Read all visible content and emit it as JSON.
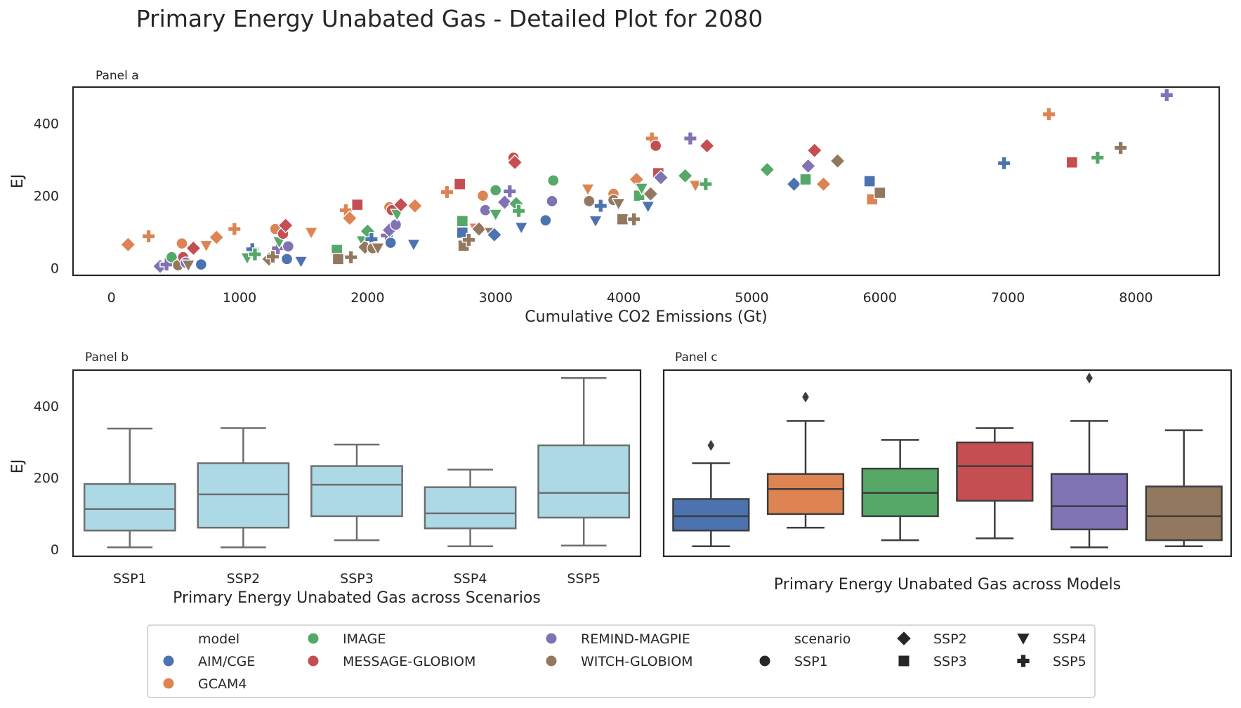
{
  "title": "Primary Energy Unabated Gas - Detailed Plot for 2080",
  "model_colors": {
    "AIM/CGE": "#4c72b0",
    "GCAM4": "#dd8452",
    "IMAGE": "#55a868",
    "MESSAGE-GLOBIOM": "#c44e52",
    "REMIND-MAGPIE": "#8172b3",
    "WITCH-GLOBIOM": "#937860"
  },
  "box_fill_scenarios": "#add8e6",
  "legend": {
    "model_title": "model",
    "scenario_title": "scenario",
    "models": [
      "AIM/CGE",
      "GCAM4",
      "IMAGE",
      "MESSAGE-GLOBIOM",
      "REMIND-MAGPIE",
      "WITCH-GLOBIOM"
    ],
    "scenarios": [
      "SSP1",
      "SSP2",
      "SSP3",
      "SSP4",
      "SSP5"
    ],
    "scenario_markers": {
      "SSP1": "circle",
      "SSP2": "diamond",
      "SSP3": "square",
      "SSP4": "triangle-down",
      "SSP5": "plus"
    }
  },
  "chart_data": [
    {
      "panel": "Panel a",
      "type": "scatter",
      "xlabel": "Cumulative CO2 Emissions (Gt)",
      "ylabel": "EJ",
      "xlim": [
        -300,
        8650
      ],
      "ylim": [
        -20,
        500
      ],
      "xticks": [
        "0",
        "1000",
        "2000",
        "3000",
        "4000",
        "5000",
        "6000",
        "7000",
        "8000"
      ],
      "yticks": [
        "0",
        "200",
        "400"
      ],
      "points": [
        {
          "x": 130,
          "y": 65,
          "model": "GCAM4",
          "scenario": "SSP2"
        },
        {
          "x": 290,
          "y": 88,
          "model": "GCAM4",
          "scenario": "SSP5"
        },
        {
          "x": 380,
          "y": 5,
          "model": "REMIND-MAGPIE",
          "scenario": "SSP2"
        },
        {
          "x": 430,
          "y": 10,
          "model": "REMIND-MAGPIE",
          "scenario": "SSP5"
        },
        {
          "x": 470,
          "y": 30,
          "model": "IMAGE",
          "scenario": "SSP1"
        },
        {
          "x": 520,
          "y": 8,
          "model": "WITCH-GLOBIOM",
          "scenario": "SSP1"
        },
        {
          "x": 550,
          "y": 68,
          "model": "GCAM4",
          "scenario": "SSP1"
        },
        {
          "x": 560,
          "y": 30,
          "model": "MESSAGE-GLOBIOM",
          "scenario": "SSP1"
        },
        {
          "x": 580,
          "y": 15,
          "model": "REMIND-MAGPIE",
          "scenario": "SSP1"
        },
        {
          "x": 600,
          "y": 8,
          "model": "WITCH-GLOBIOM",
          "scenario": "SSP4"
        },
        {
          "x": 640,
          "y": 55,
          "model": "MESSAGE-GLOBIOM",
          "scenario": "SSP2"
        },
        {
          "x": 700,
          "y": 10,
          "model": "AIM/CGE",
          "scenario": "SSP1"
        },
        {
          "x": 740,
          "y": 62,
          "model": "GCAM4",
          "scenario": "SSP4"
        },
        {
          "x": 820,
          "y": 85,
          "model": "GCAM4",
          "scenario": "SSP2"
        },
        {
          "x": 960,
          "y": 108,
          "model": "GCAM4",
          "scenario": "SSP5"
        },
        {
          "x": 1060,
          "y": 28,
          "model": "IMAGE",
          "scenario": "SSP4"
        },
        {
          "x": 1100,
          "y": 52,
          "model": "AIM/CGE",
          "scenario": "SSP5"
        },
        {
          "x": 1120,
          "y": 38,
          "model": "IMAGE",
          "scenario": "SSP5"
        },
        {
          "x": 1230,
          "y": 25,
          "model": "WITCH-GLOBIOM",
          "scenario": "SSP2"
        },
        {
          "x": 1260,
          "y": 32,
          "model": "WITCH-GLOBIOM",
          "scenario": "SSP5"
        },
        {
          "x": 1280,
          "y": 108,
          "model": "GCAM4",
          "scenario": "SSP1"
        },
        {
          "x": 1300,
          "y": 55,
          "model": "REMIND-MAGPIE",
          "scenario": "SSP5"
        },
        {
          "x": 1310,
          "y": 72,
          "model": "IMAGE",
          "scenario": "SSP4"
        },
        {
          "x": 1340,
          "y": 95,
          "model": "MESSAGE-GLOBIOM",
          "scenario": "SSP1"
        },
        {
          "x": 1360,
          "y": 118,
          "model": "MESSAGE-GLOBIOM",
          "scenario": "SSP2"
        },
        {
          "x": 1370,
          "y": 25,
          "model": "AIM/CGE",
          "scenario": "SSP1"
        },
        {
          "x": 1380,
          "y": 60,
          "model": "REMIND-MAGPIE",
          "scenario": "SSP1"
        },
        {
          "x": 1480,
          "y": 18,
          "model": "AIM/CGE",
          "scenario": "SSP4"
        },
        {
          "x": 1560,
          "y": 98,
          "model": "GCAM4",
          "scenario": "SSP4"
        },
        {
          "x": 1760,
          "y": 50,
          "model": "IMAGE",
          "scenario": "SSP3"
        },
        {
          "x": 1770,
          "y": 25,
          "model": "WITCH-GLOBIOM",
          "scenario": "SSP3"
        },
        {
          "x": 1830,
          "y": 160,
          "model": "GCAM4",
          "scenario": "SSP5"
        },
        {
          "x": 1860,
          "y": 138,
          "model": "GCAM4",
          "scenario": "SSP2"
        },
        {
          "x": 1870,
          "y": 30,
          "model": "WITCH-GLOBIOM",
          "scenario": "SSP5"
        },
        {
          "x": 1920,
          "y": 175,
          "model": "MESSAGE-GLOBIOM",
          "scenario": "SSP3"
        },
        {
          "x": 1960,
          "y": 75,
          "model": "IMAGE",
          "scenario": "SSP4"
        },
        {
          "x": 1980,
          "y": 58,
          "model": "WITCH-GLOBIOM",
          "scenario": "SSP2"
        },
        {
          "x": 2000,
          "y": 102,
          "model": "IMAGE",
          "scenario": "SSP2"
        },
        {
          "x": 2030,
          "y": 80,
          "model": "AIM/CGE",
          "scenario": "SSP5"
        },
        {
          "x": 2040,
          "y": 55,
          "model": "WITCH-GLOBIOM",
          "scenario": "SSP1"
        },
        {
          "x": 2080,
          "y": 55,
          "model": "WITCH-GLOBIOM",
          "scenario": "SSP4"
        },
        {
          "x": 2150,
          "y": 90,
          "model": "REMIND-MAGPIE",
          "scenario": "SSP5"
        },
        {
          "x": 2170,
          "y": 105,
          "model": "REMIND-MAGPIE",
          "scenario": "SSP2"
        },
        {
          "x": 2180,
          "y": 70,
          "model": "AIM/CGE",
          "scenario": "SSP1"
        },
        {
          "x": 2170,
          "y": 168,
          "model": "GCAM4",
          "scenario": "SSP1"
        },
        {
          "x": 2190,
          "y": 160,
          "model": "MESSAGE-GLOBIOM",
          "scenario": "SSP1"
        },
        {
          "x": 2220,
          "y": 120,
          "model": "REMIND-MAGPIE",
          "scenario": "SSP1"
        },
        {
          "x": 2230,
          "y": 148,
          "model": "IMAGE",
          "scenario": "SSP4"
        },
        {
          "x": 2260,
          "y": 175,
          "model": "MESSAGE-GLOBIOM",
          "scenario": "SSP2"
        },
        {
          "x": 2360,
          "y": 65,
          "model": "AIM/CGE",
          "scenario": "SSP4"
        },
        {
          "x": 2370,
          "y": 172,
          "model": "GCAM4",
          "scenario": "SSP2"
        },
        {
          "x": 2620,
          "y": 210,
          "model": "GCAM4",
          "scenario": "SSP5"
        },
        {
          "x": 2720,
          "y": 232,
          "model": "MESSAGE-GLOBIOM",
          "scenario": "SSP3"
        },
        {
          "x": 2740,
          "y": 130,
          "model": "IMAGE",
          "scenario": "SSP3"
        },
        {
          "x": 2740,
          "y": 98,
          "model": "AIM/CGE",
          "scenario": "SSP3"
        },
        {
          "x": 2750,
          "y": 62,
          "model": "WITCH-GLOBIOM",
          "scenario": "SSP3"
        },
        {
          "x": 2790,
          "y": 78,
          "model": "WITCH-GLOBIOM",
          "scenario": "SSP5"
        },
        {
          "x": 2840,
          "y": 110,
          "model": "GCAM4",
          "scenario": "SSP4"
        },
        {
          "x": 2870,
          "y": 108,
          "model": "WITCH-GLOBIOM",
          "scenario": "SSP2"
        },
        {
          "x": 2900,
          "y": 200,
          "model": "GCAM4",
          "scenario": "SSP1"
        },
        {
          "x": 2920,
          "y": 160,
          "model": "REMIND-MAGPIE",
          "scenario": "SSP1"
        },
        {
          "x": 2960,
          "y": 98,
          "model": "WITCH-GLOBIOM",
          "scenario": "SSP4"
        },
        {
          "x": 2990,
          "y": 92,
          "model": "AIM/CGE",
          "scenario": "SSP2"
        },
        {
          "x": 3000,
          "y": 215,
          "model": "IMAGE",
          "scenario": "SSP1"
        },
        {
          "x": 3000,
          "y": 148,
          "model": "IMAGE",
          "scenario": "SSP4"
        },
        {
          "x": 3070,
          "y": 182,
          "model": "REMIND-MAGPIE",
          "scenario": "SSP2"
        },
        {
          "x": 3110,
          "y": 212,
          "model": "REMIND-MAGPIE",
          "scenario": "SSP5"
        },
        {
          "x": 3140,
          "y": 305,
          "model": "MESSAGE-GLOBIOM",
          "scenario": "SSP1"
        },
        {
          "x": 3150,
          "y": 292,
          "model": "MESSAGE-GLOBIOM",
          "scenario": "SSP2"
        },
        {
          "x": 3160,
          "y": 178,
          "model": "IMAGE",
          "scenario": "SSP2"
        },
        {
          "x": 3180,
          "y": 158,
          "model": "IMAGE",
          "scenario": "SSP5"
        },
        {
          "x": 3200,
          "y": 112,
          "model": "AIM/CGE",
          "scenario": "SSP4"
        },
        {
          "x": 3390,
          "y": 132,
          "model": "AIM/CGE",
          "scenario": "SSP1"
        },
        {
          "x": 3440,
          "y": 185,
          "model": "REMIND-MAGPIE",
          "scenario": "SSP1"
        },
        {
          "x": 3450,
          "y": 242,
          "model": "IMAGE",
          "scenario": "SSP1"
        },
        {
          "x": 3720,
          "y": 218,
          "model": "GCAM4",
          "scenario": "SSP4"
        },
        {
          "x": 3730,
          "y": 185,
          "model": "WITCH-GLOBIOM",
          "scenario": "SSP1"
        },
        {
          "x": 3820,
          "y": 172,
          "model": "AIM/CGE",
          "scenario": "SSP5"
        },
        {
          "x": 3780,
          "y": 130,
          "model": "AIM/CGE",
          "scenario": "SSP4"
        },
        {
          "x": 3920,
          "y": 205,
          "model": "GCAM4",
          "scenario": "SSP1"
        },
        {
          "x": 3920,
          "y": 188,
          "model": "WITCH-GLOBIOM",
          "scenario": "SSP1"
        },
        {
          "x": 3960,
          "y": 178,
          "model": "WITCH-GLOBIOM",
          "scenario": "SSP4"
        },
        {
          "x": 3990,
          "y": 135,
          "model": "WITCH-GLOBIOM",
          "scenario": "SSP3"
        },
        {
          "x": 4080,
          "y": 135,
          "model": "WITCH-GLOBIOM",
          "scenario": "SSP5"
        },
        {
          "x": 4100,
          "y": 245,
          "model": "GCAM4",
          "scenario": "SSP2"
        },
        {
          "x": 4120,
          "y": 200,
          "model": "IMAGE",
          "scenario": "SSP3"
        },
        {
          "x": 4140,
          "y": 220,
          "model": "IMAGE",
          "scenario": "SSP4"
        },
        {
          "x": 4180,
          "y": 172,
          "model": "WITCH-GLOBIOM",
          "scenario": "SSP4"
        },
        {
          "x": 4190,
          "y": 170,
          "model": "AIM/CGE",
          "scenario": "SSP4"
        },
        {
          "x": 4210,
          "y": 205,
          "model": "WITCH-GLOBIOM",
          "scenario": "SSP2"
        },
        {
          "x": 4220,
          "y": 358,
          "model": "GCAM4",
          "scenario": "SSP5"
        },
        {
          "x": 4250,
          "y": 338,
          "model": "MESSAGE-GLOBIOM",
          "scenario": "SSP1"
        },
        {
          "x": 4270,
          "y": 262,
          "model": "MESSAGE-GLOBIOM",
          "scenario": "SSP3"
        },
        {
          "x": 4290,
          "y": 250,
          "model": "REMIND-MAGPIE",
          "scenario": "SSP2"
        },
        {
          "x": 4480,
          "y": 255,
          "model": "IMAGE",
          "scenario": "SSP2"
        },
        {
          "x": 4520,
          "y": 358,
          "model": "REMIND-MAGPIE",
          "scenario": "SSP5"
        },
        {
          "x": 4560,
          "y": 228,
          "model": "GCAM4",
          "scenario": "SSP4"
        },
        {
          "x": 4640,
          "y": 232,
          "model": "IMAGE",
          "scenario": "SSP5"
        },
        {
          "x": 4650,
          "y": 338,
          "model": "MESSAGE-GLOBIOM",
          "scenario": "SSP2"
        },
        {
          "x": 5120,
          "y": 272,
          "model": "IMAGE",
          "scenario": "SSP2"
        },
        {
          "x": 5330,
          "y": 232,
          "model": "AIM/CGE",
          "scenario": "SSP2"
        },
        {
          "x": 5420,
          "y": 245,
          "model": "IMAGE",
          "scenario": "SSP3"
        },
        {
          "x": 5440,
          "y": 282,
          "model": "REMIND-MAGPIE",
          "scenario": "SSP2"
        },
        {
          "x": 5490,
          "y": 325,
          "model": "MESSAGE-GLOBIOM",
          "scenario": "SSP2"
        },
        {
          "x": 5560,
          "y": 232,
          "model": "GCAM4",
          "scenario": "SSP2"
        },
        {
          "x": 5670,
          "y": 296,
          "model": "WITCH-GLOBIOM",
          "scenario": "SSP2"
        },
        {
          "x": 5920,
          "y": 240,
          "model": "AIM/CGE",
          "scenario": "SSP3"
        },
        {
          "x": 5940,
          "y": 190,
          "model": "GCAM4",
          "scenario": "SSP3"
        },
        {
          "x": 6000,
          "y": 208,
          "model": "WITCH-GLOBIOM",
          "scenario": "SSP3"
        },
        {
          "x": 6970,
          "y": 290,
          "model": "AIM/CGE",
          "scenario": "SSP5"
        },
        {
          "x": 7320,
          "y": 425,
          "model": "GCAM4",
          "scenario": "SSP5"
        },
        {
          "x": 7500,
          "y": 292,
          "model": "MESSAGE-GLOBIOM",
          "scenario": "SSP3"
        },
        {
          "x": 7700,
          "y": 305,
          "model": "IMAGE",
          "scenario": "SSP5"
        },
        {
          "x": 7880,
          "y": 332,
          "model": "WITCH-GLOBIOM",
          "scenario": "SSP5"
        },
        {
          "x": 8240,
          "y": 478,
          "model": "REMIND-MAGPIE",
          "scenario": "SSP5"
        }
      ]
    },
    {
      "panel": "Panel b",
      "type": "box",
      "xlabel": "Primary Energy Unabated Gas across Scenarios",
      "ylabel": "EJ",
      "ylim": [
        -20,
        500
      ],
      "yticks": [
        "0",
        "200",
        "400"
      ],
      "categories": [
        "SSP1",
        "SSP2",
        "SSP3",
        "SSP4",
        "SSP5"
      ],
      "boxes": [
        {
          "whislo": 5,
          "q1": 52,
          "med": 112,
          "q3": 182,
          "whishi": 337,
          "fliers": []
        },
        {
          "whislo": 5,
          "q1": 60,
          "med": 153,
          "q3": 240,
          "whishi": 338,
          "fliers": []
        },
        {
          "whislo": 25,
          "q1": 92,
          "med": 180,
          "q3": 232,
          "whishi": 292,
          "fliers": []
        },
        {
          "whislo": 8,
          "q1": 58,
          "med": 100,
          "q3": 173,
          "whishi": 222,
          "fliers": []
        },
        {
          "whislo": 10,
          "q1": 88,
          "med": 157,
          "q3": 290,
          "whishi": 478,
          "fliers": []
        }
      ]
    },
    {
      "panel": "Panel c",
      "type": "box",
      "xlabel": "Primary Energy Unabated Gas across Models",
      "ylim": [
        -20,
        500
      ],
      "categories": [
        "AIM/CGE",
        "GCAM4",
        "IMAGE",
        "MESSAGE-GLOBIOM",
        "REMIND-MAGPIE",
        "WITCH-GLOBIOM"
      ],
      "boxes": [
        {
          "whislo": 8,
          "q1": 52,
          "med": 92,
          "q3": 140,
          "whishi": 240,
          "fliers": [
            290
          ]
        },
        {
          "whislo": 60,
          "q1": 98,
          "med": 168,
          "q3": 210,
          "whishi": 358,
          "fliers": [
            425
          ]
        },
        {
          "whislo": 25,
          "q1": 92,
          "med": 157,
          "q3": 225,
          "whishi": 305,
          "fliers": []
        },
        {
          "whislo": 30,
          "q1": 135,
          "med": 232,
          "q3": 298,
          "whishi": 338,
          "fliers": []
        },
        {
          "whislo": 5,
          "q1": 55,
          "med": 120,
          "q3": 210,
          "whishi": 358,
          "fliers": [
            478
          ]
        },
        {
          "whislo": 8,
          "q1": 25,
          "med": 92,
          "q3": 175,
          "whishi": 332,
          "fliers": []
        }
      ]
    }
  ]
}
